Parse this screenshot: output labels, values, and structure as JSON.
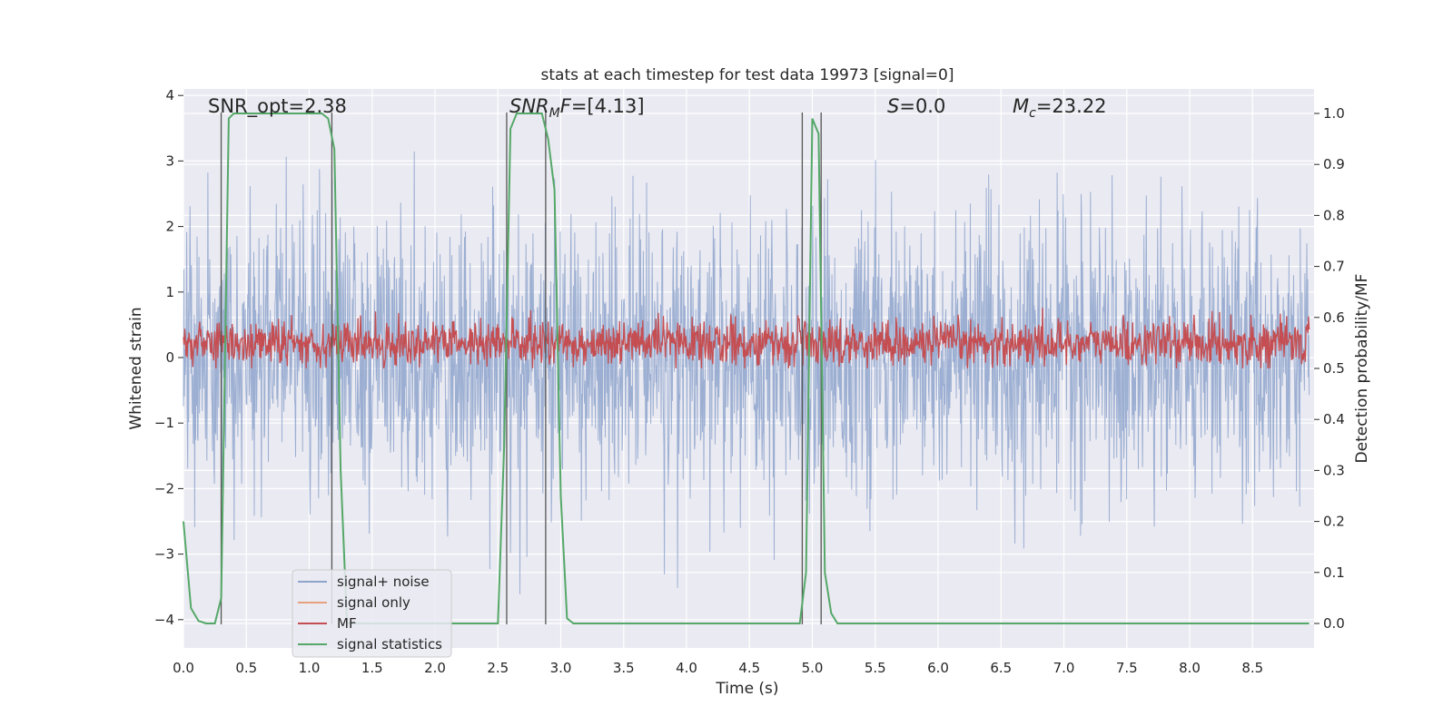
{
  "chart_data": {
    "type": "line",
    "title": "stats at each timestep for test data 19973 [signal=0]",
    "xlabel": "Time (s)",
    "ylabel": "Whitened strain",
    "ylabel_right": "Detection probability/MF",
    "xlim": [
      0,
      9.0
    ],
    "ylim": [
      -4.4,
      4.2
    ],
    "ylim_right": [
      -0.05,
      1.04
    ],
    "xticks": [
      "0.0",
      "0.5",
      "1.0",
      "1.5",
      "2.0",
      "2.5",
      "3.0",
      "3.5",
      "4.0",
      "4.5",
      "5.0",
      "5.5",
      "6.0",
      "6.5",
      "7.0",
      "7.5",
      "8.0",
      "8.5"
    ],
    "yticks": [
      "4",
      "3",
      "2",
      "1",
      "0",
      "−1",
      "−2",
      "−3",
      "−4"
    ],
    "yticks_right": [
      "1.0",
      "0.9",
      "0.8",
      "0.7",
      "0.6",
      "0.5",
      "0.4",
      "0.3",
      "0.2",
      "0.1",
      "0.0"
    ],
    "grid": true,
    "legend_position": "lower-left",
    "annotations": {
      "snr_opt": "SNR_opt=2.38",
      "snr_mf": "=[4.13]",
      "snr_mf_symbol": "SNR",
      "snr_mf_sub": "M",
      "snr_mf_f": "F",
      "s_value": "=0.0",
      "s_symbol": "S",
      "mc_value": "=23.22",
      "mc_symbol": "M",
      "mc_sub": "c"
    },
    "vertical_lines_x": [
      0.3,
      1.18,
      2.57,
      2.88,
      4.92,
      5.07
    ],
    "series": [
      {
        "name": "signal+ noise",
        "color": "#8ea4cc",
        "description_axis": "left",
        "rms_amplitude": 1.0,
        "peak_range": [
          -4.0,
          3.9
        ]
      },
      {
        "name": "signal only",
        "color": "#e8a17f",
        "axis": "left",
        "values": []
      },
      {
        "name": "MF",
        "color": "#c44e52",
        "axis": "right",
        "baseline": 0.55,
        "range": [
          0.5,
          0.63
        ]
      },
      {
        "name": "signal statistics",
        "color": "#55a868",
        "axis": "right",
        "x": [
          0.0,
          0.06,
          0.12,
          0.18,
          0.25,
          0.3,
          0.36,
          0.4,
          0.5,
          0.6,
          0.7,
          0.8,
          0.9,
          1.0,
          1.1,
          1.15,
          1.2,
          1.25,
          1.3,
          1.4,
          1.5,
          1.6,
          1.7,
          1.8,
          1.9,
          2.0,
          2.1,
          2.2,
          2.3,
          2.4,
          2.5,
          2.55,
          2.6,
          2.65,
          2.7,
          2.75,
          2.8,
          2.85,
          2.9,
          2.95,
          3.0,
          3.05,
          3.1,
          3.2,
          3.3,
          3.4,
          3.5,
          3.6,
          3.7,
          3.8,
          3.9,
          4.0,
          4.1,
          4.2,
          4.3,
          4.4,
          4.5,
          4.6,
          4.7,
          4.8,
          4.9,
          4.95,
          5.0,
          5.05,
          5.1,
          5.15,
          5.2,
          5.3,
          5.4,
          5.5,
          5.6,
          5.7,
          5.8,
          5.9,
          6.0,
          6.1,
          6.2,
          6.3,
          6.4,
          6.5,
          6.6,
          6.7,
          6.8,
          6.9,
          7.0,
          7.1,
          7.2,
          7.3,
          7.4,
          7.5,
          7.6,
          7.7,
          7.8,
          7.9,
          8.0,
          8.1,
          8.2,
          8.3,
          8.4,
          8.5,
          8.6,
          8.7,
          8.8,
          8.95
        ],
        "y": [
          0.2,
          0.03,
          0.005,
          0.0,
          0.0,
          0.05,
          0.99,
          1.0,
          1.0,
          1.0,
          1.0,
          1.0,
          1.0,
          1.0,
          1.0,
          0.99,
          0.93,
          0.3,
          0.0,
          0.0,
          0.0,
          0.0,
          0.0,
          0.0,
          0.0,
          0.0,
          0.0,
          0.0,
          0.0,
          0.0,
          0.0,
          0.35,
          0.97,
          1.0,
          1.0,
          1.0,
          1.0,
          1.0,
          0.95,
          0.85,
          0.25,
          0.01,
          0.0,
          0.0,
          0.0,
          0.0,
          0.0,
          0.0,
          0.0,
          0.0,
          0.0,
          0.0,
          0.0,
          0.0,
          0.0,
          0.0,
          0.0,
          0.0,
          0.0,
          0.0,
          0.0,
          0.1,
          0.99,
          0.96,
          0.1,
          0.02,
          0.0,
          0.0,
          0.0,
          0.0,
          0.0,
          0.0,
          0.0,
          0.0,
          0.0,
          0.0,
          0.0,
          0.0,
          0.0,
          0.0,
          0.0,
          0.0,
          0.0,
          0.0,
          0.0,
          0.0,
          0.0,
          0.0,
          0.0,
          0.0,
          0.0,
          0.0,
          0.0,
          0.0,
          0.0,
          0.0,
          0.0,
          0.0,
          0.0,
          0.0,
          0.0,
          0.0,
          0.0,
          0.0
        ]
      }
    ],
    "legend": [
      "signal+ noise",
      "signal only",
      "MF",
      "signal statistics"
    ]
  }
}
